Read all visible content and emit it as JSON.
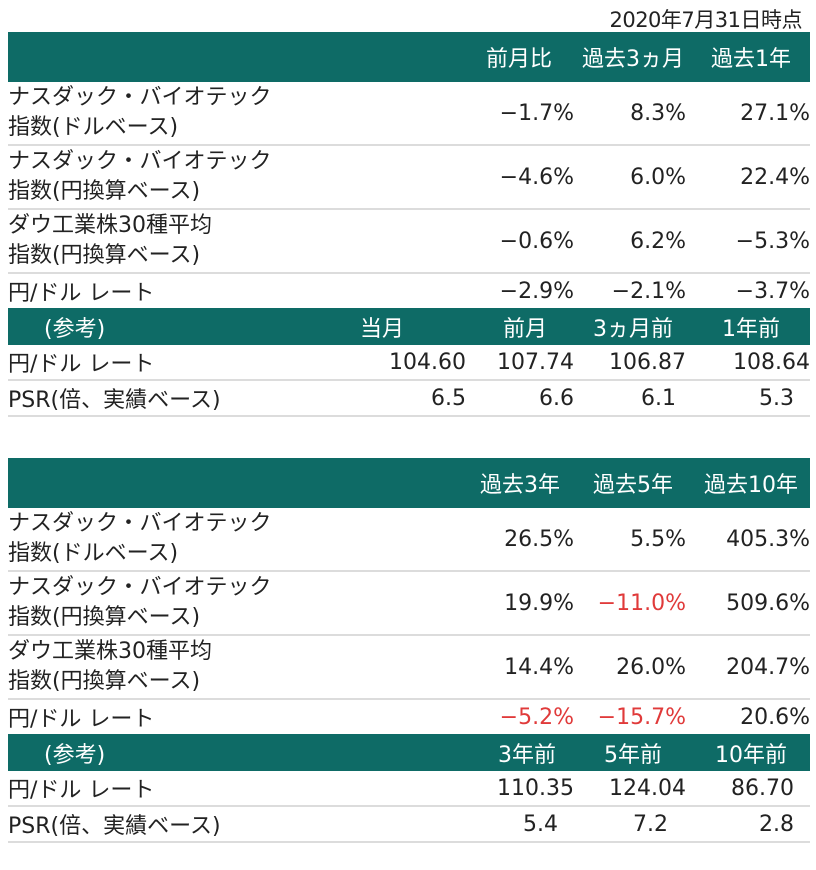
{
  "date_label": "2020年7月31日時点",
  "table1": {
    "headers": [
      "前月比",
      "過去3ヵ月",
      "過去1年"
    ],
    "rows": [
      {
        "line1": "ナスダック・バイオテック",
        "line2": "指数(ドルベース)",
        "values": [
          "−1.7%",
          "8.3%",
          "27.1%"
        ]
      },
      {
        "line1": "ナスダック・バイオテック",
        "line2": "指数(円換算ベース)",
        "values": [
          "−4.6%",
          "6.0%",
          "22.4%"
        ]
      },
      {
        "line1": "ダウ工業株30種平均",
        "line2": "指数(円換算ベース)",
        "values": [
          "−0.6%",
          "6.2%",
          "−5.3%"
        ]
      },
      {
        "label": "円/ドル レート",
        "values": [
          "−2.9%",
          "−2.1%",
          "−3.7%"
        ]
      }
    ],
    "ref": {
      "label": "(参考)",
      "headers": [
        "当月",
        "前月",
        "3ヵ月前",
        "1年前"
      ],
      "rows": [
        {
          "label": "円/ドル レート",
          "values": [
            "104.60",
            "107.74",
            "106.87",
            "108.64"
          ]
        },
        {
          "label": "PSR(倍、実績ベース)",
          "values": [
            "6.5",
            "6.6",
            "6.1",
            "5.3"
          ]
        }
      ]
    }
  },
  "table2": {
    "headers": [
      "過去3年",
      "過去5年",
      "過去10年"
    ],
    "rows": [
      {
        "line1": "ナスダック・バイオテック",
        "line2": "指数(ドルベース)",
        "values": [
          "26.5%",
          "5.5%",
          "405.3%"
        ]
      },
      {
        "line1": "ナスダック・バイオテック",
        "line2": "指数(円換算ベース)",
        "values": [
          "19.9%",
          "−11.0%",
          "509.6%"
        ]
      },
      {
        "line1": "ダウ工業株30種平均",
        "line2": "指数(円換算ベース)",
        "values": [
          "14.4%",
          "26.0%",
          "204.7%"
        ]
      },
      {
        "label": "円/ドル レート",
        "values": [
          "−5.2%",
          "−15.7%",
          "20.6%"
        ]
      }
    ],
    "ref": {
      "label": "(参考)",
      "headers": [
        "3年前",
        "5年前",
        "10年前"
      ],
      "rows": [
        {
          "label": "円/ドル レート",
          "values": [
            "110.35",
            "124.04",
            "86.70"
          ]
        },
        {
          "label": "PSR(倍、実績ベース)",
          "values": [
            "5.4",
            "7.2",
            "2.8"
          ]
        }
      ]
    }
  },
  "colors": {
    "header_bg": "#0e6b66",
    "negative_red": "#e03a3a"
  }
}
